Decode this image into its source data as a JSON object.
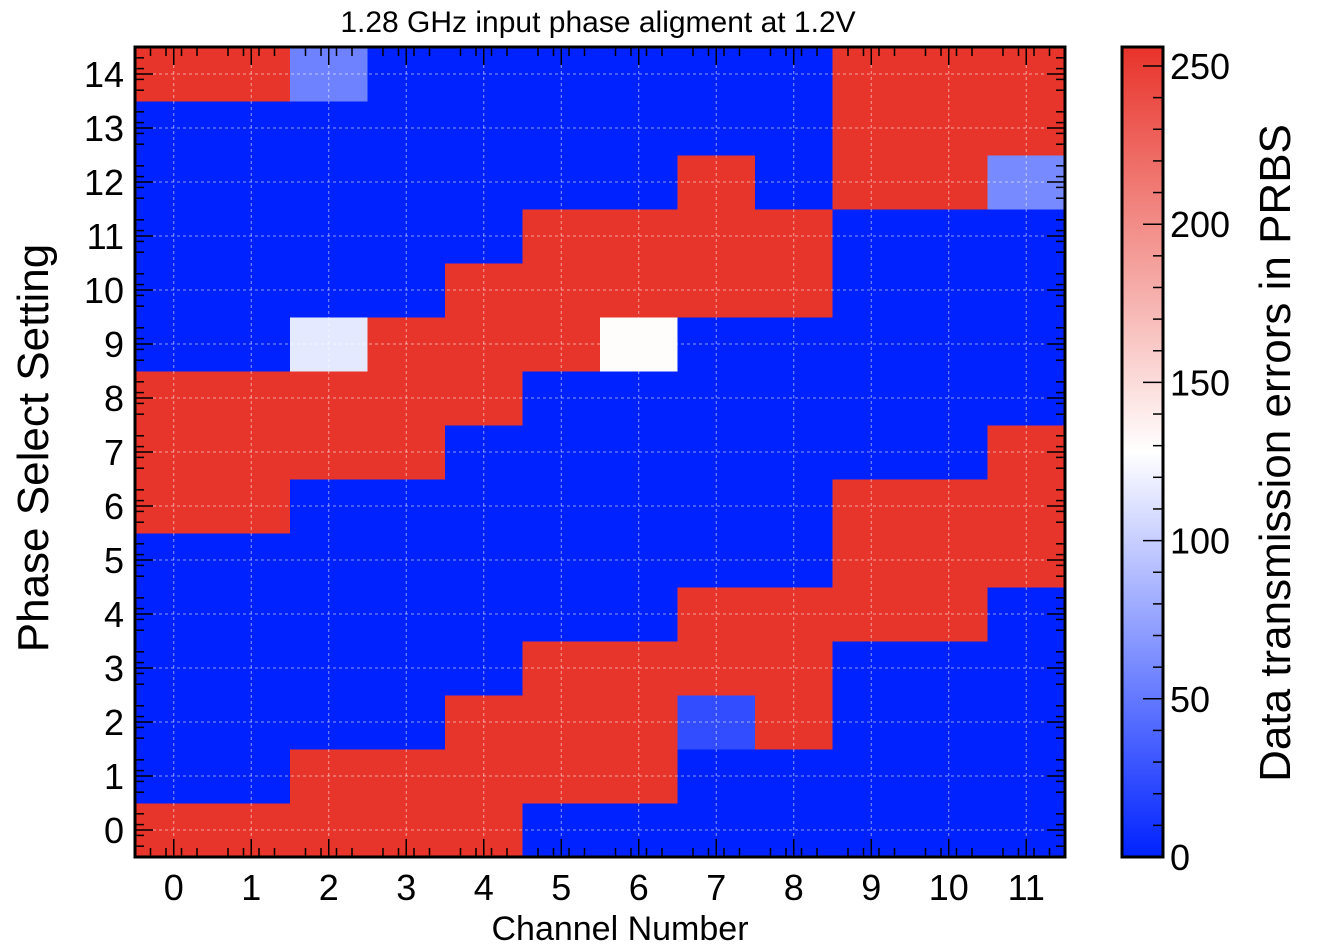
{
  "chart_data": {
    "type": "heatmap",
    "title": "1.28 GHz input phase aligment at 1.2V",
    "xlabel": "Channel Number",
    "ylabel": "Phase Select Setting",
    "colorbar_label": "Data transmission errors in PRBS",
    "x_ticks": [
      "0",
      "1",
      "2",
      "3",
      "4",
      "5",
      "6",
      "7",
      "8",
      "9",
      "10",
      "11"
    ],
    "y_ticks": [
      "0",
      "1",
      "2",
      "3",
      "4",
      "5",
      "6",
      "7",
      "8",
      "9",
      "10",
      "11",
      "12",
      "13",
      "14"
    ],
    "colorbar_ticks": [
      "0",
      "50",
      "100",
      "150",
      "200",
      "250"
    ],
    "zlim": [
      0,
      256
    ],
    "grid": true,
    "colormap": [
      "#0022ff",
      "#ffffff",
      "#e8332a"
    ],
    "values": [
      [
        255,
        255,
        255,
        255,
        255,
        0,
        0,
        0,
        0,
        0,
        0,
        0
      ],
      [
        0,
        0,
        255,
        255,
        255,
        255,
        255,
        0,
        0,
        0,
        0,
        0
      ],
      [
        0,
        0,
        0,
        0,
        255,
        255,
        255,
        25,
        255,
        0,
        0,
        0
      ],
      [
        0,
        0,
        0,
        0,
        0,
        255,
        255,
        255,
        255,
        0,
        0,
        0
      ],
      [
        0,
        0,
        0,
        0,
        0,
        0,
        0,
        255,
        255,
        255,
        255,
        0
      ],
      [
        0,
        0,
        0,
        0,
        0,
        0,
        0,
        0,
        0,
        255,
        255,
        255
      ],
      [
        255,
        255,
        0,
        0,
        0,
        0,
        0,
        0,
        0,
        255,
        255,
        255
      ],
      [
        255,
        255,
        255,
        255,
        0,
        0,
        0,
        0,
        0,
        0,
        0,
        255
      ],
      [
        255,
        255,
        255,
        255,
        255,
        0,
        0,
        0,
        0,
        0,
        0,
        0
      ],
      [
        0,
        0,
        115,
        255,
        255,
        255,
        130,
        0,
        0,
        0,
        0,
        0
      ],
      [
        0,
        0,
        0,
        0,
        255,
        255,
        255,
        255,
        255,
        0,
        0,
        0
      ],
      [
        0,
        0,
        0,
        0,
        0,
        255,
        255,
        255,
        255,
        0,
        0,
        0
      ],
      [
        0,
        0,
        0,
        0,
        0,
        0,
        0,
        255,
        0,
        255,
        255,
        60
      ],
      [
        0,
        0,
        0,
        0,
        0,
        0,
        0,
        0,
        0,
        255,
        255,
        255
      ],
      [
        255,
        255,
        55,
        0,
        0,
        0,
        0,
        0,
        0,
        255,
        255,
        255
      ]
    ]
  }
}
